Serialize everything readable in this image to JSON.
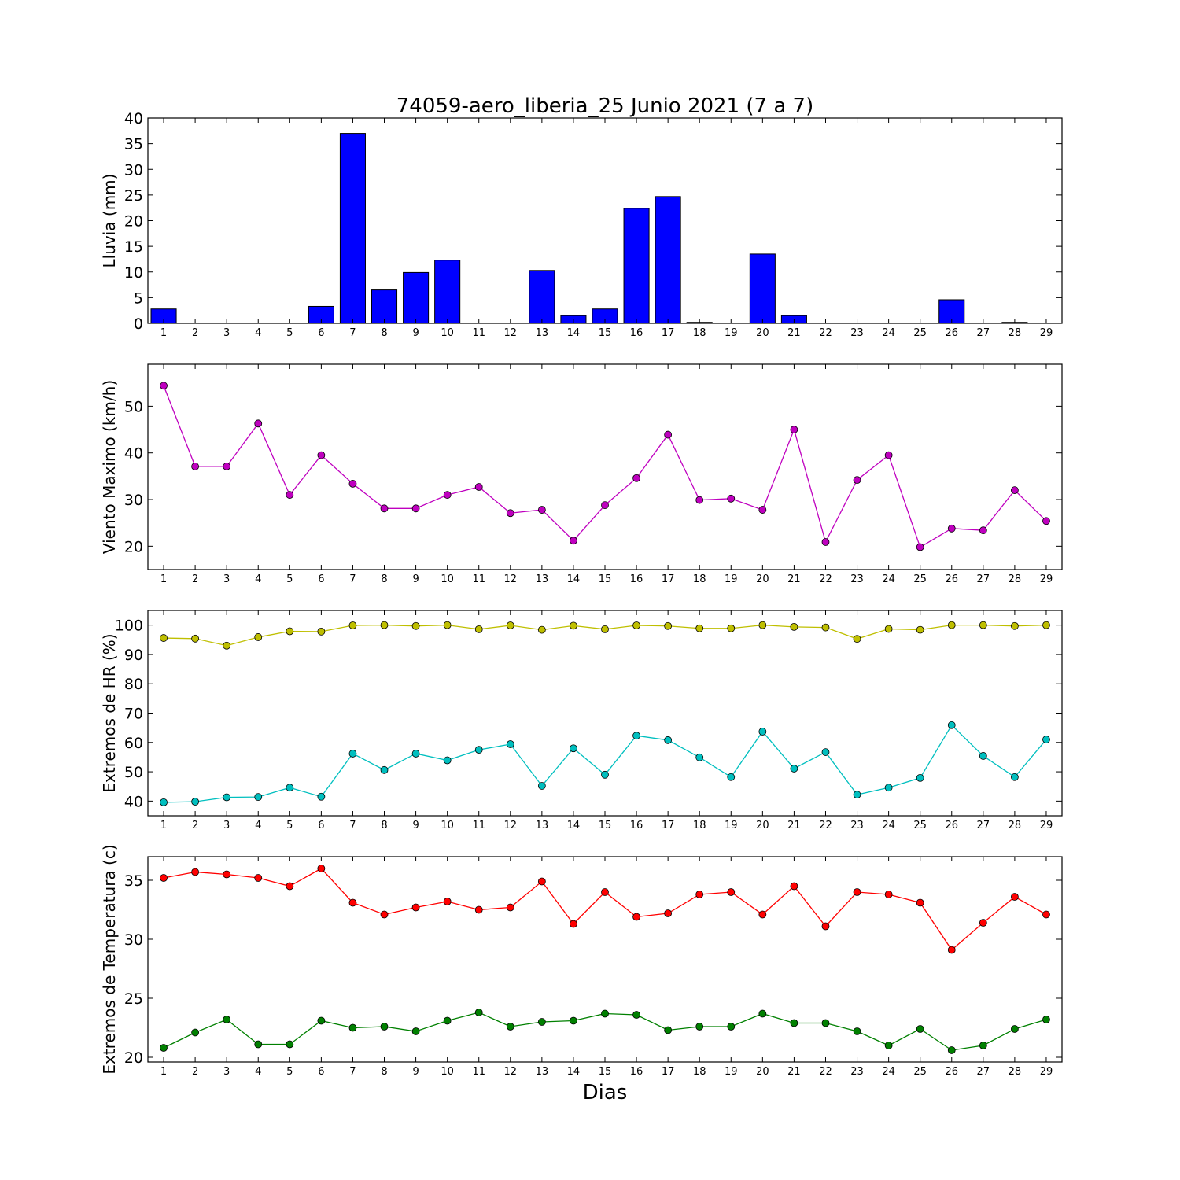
{
  "figure": {
    "title": "74059-aero_liberia_25 Junio 2021  (7 a 7)",
    "xlabel": "Dias"
  },
  "chart_data": [
    {
      "type": "bar",
      "ylabel": "Lluvia (mm)",
      "ylim": [
        0,
        40
      ],
      "yticks": [
        0,
        5,
        10,
        15,
        20,
        25,
        30,
        35,
        40
      ],
      "x": [
        1,
        2,
        3,
        4,
        5,
        6,
        7,
        8,
        9,
        10,
        11,
        12,
        13,
        14,
        15,
        16,
        17,
        18,
        19,
        20,
        21,
        22,
        23,
        24,
        25,
        26,
        27,
        28,
        29
      ],
      "series": [
        {
          "color": "#0000ff",
          "values": [
            2.8,
            0,
            0,
            0,
            0,
            3.3,
            37.0,
            6.5,
            9.9,
            12.3,
            0,
            0,
            10.3,
            1.5,
            2.8,
            22.4,
            24.7,
            0.2,
            0,
            13.5,
            1.5,
            0,
            0,
            0,
            0,
            4.6,
            0,
            0.2,
            0
          ]
        }
      ]
    },
    {
      "type": "line",
      "ylabel": "Viento Maximo (km/h)",
      "ylim": [
        15,
        59
      ],
      "yticks": [
        20,
        30,
        40,
        50
      ],
      "x": [
        1,
        2,
        3,
        4,
        5,
        6,
        7,
        8,
        9,
        10,
        11,
        12,
        13,
        14,
        15,
        16,
        17,
        18,
        19,
        20,
        21,
        22,
        23,
        24,
        25,
        26,
        27,
        28,
        29
      ],
      "series": [
        {
          "color": "#bf00bf",
          "values": [
            54.4,
            37.1,
            37.1,
            46.3,
            31.0,
            39.5,
            33.4,
            28.1,
            28.1,
            31.0,
            32.7,
            27.1,
            27.8,
            21.2,
            28.8,
            34.6,
            43.9,
            29.9,
            30.2,
            27.8,
            45.0,
            20.9,
            34.2,
            39.5,
            19.8,
            23.8,
            23.4,
            32.0,
            25.4
          ]
        }
      ]
    },
    {
      "type": "line",
      "ylabel": "Extremos de HR (%)",
      "ylim": [
        35,
        105
      ],
      "yticks": [
        40,
        50,
        60,
        70,
        80,
        90,
        100
      ],
      "x": [
        1,
        2,
        3,
        4,
        5,
        6,
        7,
        8,
        9,
        10,
        11,
        12,
        13,
        14,
        15,
        16,
        17,
        18,
        19,
        20,
        21,
        22,
        23,
        24,
        25,
        26,
        27,
        28,
        29
      ],
      "series": [
        {
          "color": "#bfbf00",
          "values": [
            95.6,
            95.4,
            93.0,
            95.9,
            97.9,
            97.8,
            99.9,
            100,
            99.7,
            100,
            98.6,
            99.9,
            98.4,
            99.8,
            98.6,
            99.9,
            99.7,
            98.9,
            98.9,
            100,
            99.4,
            99.2,
            95.3,
            98.7,
            98.4,
            100,
            100,
            99.7,
            100
          ]
        },
        {
          "color": "#00bfbf",
          "values": [
            39.6,
            39.8,
            41.3,
            41.4,
            44.6,
            41.5,
            56.2,
            50.6,
            56.2,
            53.9,
            57.5,
            59.4,
            45.2,
            58.0,
            49.0,
            62.3,
            60.8,
            54.9,
            48.2,
            63.7,
            51.1,
            56.7,
            42.2,
            44.6,
            47.9,
            65.9,
            55.4,
            48.2,
            61.0
          ]
        }
      ]
    },
    {
      "type": "line",
      "ylabel": "Extremos de Temperatura (c)",
      "ylim": [
        19.6,
        37.0
      ],
      "yticks": [
        20,
        25,
        30,
        35
      ],
      "x": [
        1,
        2,
        3,
        4,
        5,
        6,
        7,
        8,
        9,
        10,
        11,
        12,
        13,
        14,
        15,
        16,
        17,
        18,
        19,
        20,
        21,
        22,
        23,
        24,
        25,
        26,
        27,
        28,
        29
      ],
      "series": [
        {
          "color": "#ff0000",
          "values": [
            35.2,
            35.7,
            35.5,
            35.2,
            34.5,
            36.0,
            33.1,
            32.1,
            32.7,
            33.2,
            32.5,
            32.7,
            34.9,
            31.3,
            34.0,
            31.9,
            32.2,
            33.8,
            34.0,
            32.1,
            34.5,
            31.1,
            34.0,
            33.8,
            33.1,
            29.1,
            31.4,
            33.6,
            32.1
          ]
        },
        {
          "color": "#008000",
          "values": [
            20.8,
            22.1,
            23.2,
            21.1,
            21.1,
            23.1,
            22.5,
            22.6,
            22.2,
            23.1,
            23.8,
            22.6,
            23.0,
            23.1,
            23.7,
            23.6,
            22.3,
            22.6,
            22.6,
            23.7,
            22.9,
            22.9,
            22.2,
            21.0,
            22.4,
            20.6,
            21.0,
            22.4,
            23.2
          ]
        }
      ]
    }
  ]
}
